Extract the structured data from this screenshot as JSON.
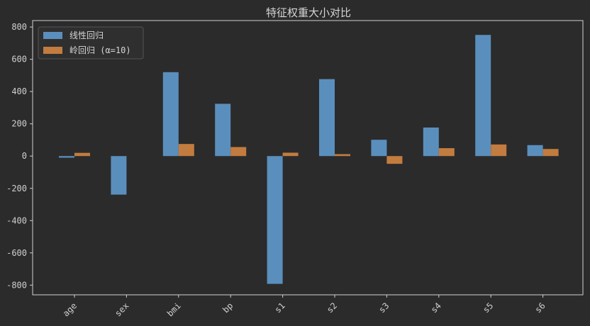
{
  "chart_data": {
    "type": "bar",
    "title": "特征权重大小对比",
    "xlabel": "",
    "ylabel": "",
    "categories": [
      "age",
      "sex",
      "bmi",
      "bp",
      "s1",
      "s2",
      "s3",
      "s4",
      "s5",
      "s6"
    ],
    "series": [
      {
        "name": "线性回归",
        "color": "#5a8fbd",
        "values": [
          -10,
          -239,
          520,
          324,
          -792,
          477,
          101,
          177,
          751,
          68
        ]
      },
      {
        "name": "岭回归 (α=10)",
        "color": "#c27c3f",
        "values": [
          20,
          0,
          75,
          56,
          21,
          12,
          -48,
          49,
          72,
          44
        ]
      }
    ],
    "ylim": [
      -860,
      840
    ],
    "yticks": [
      -800,
      -600,
      -400,
      -200,
      0,
      200,
      400,
      600,
      800
    ],
    "grid": false,
    "legend_position": "top-left",
    "colors": {
      "background": "#2b2b2b",
      "axis": "#d0d0d0",
      "text": "#cfcfcf"
    }
  }
}
